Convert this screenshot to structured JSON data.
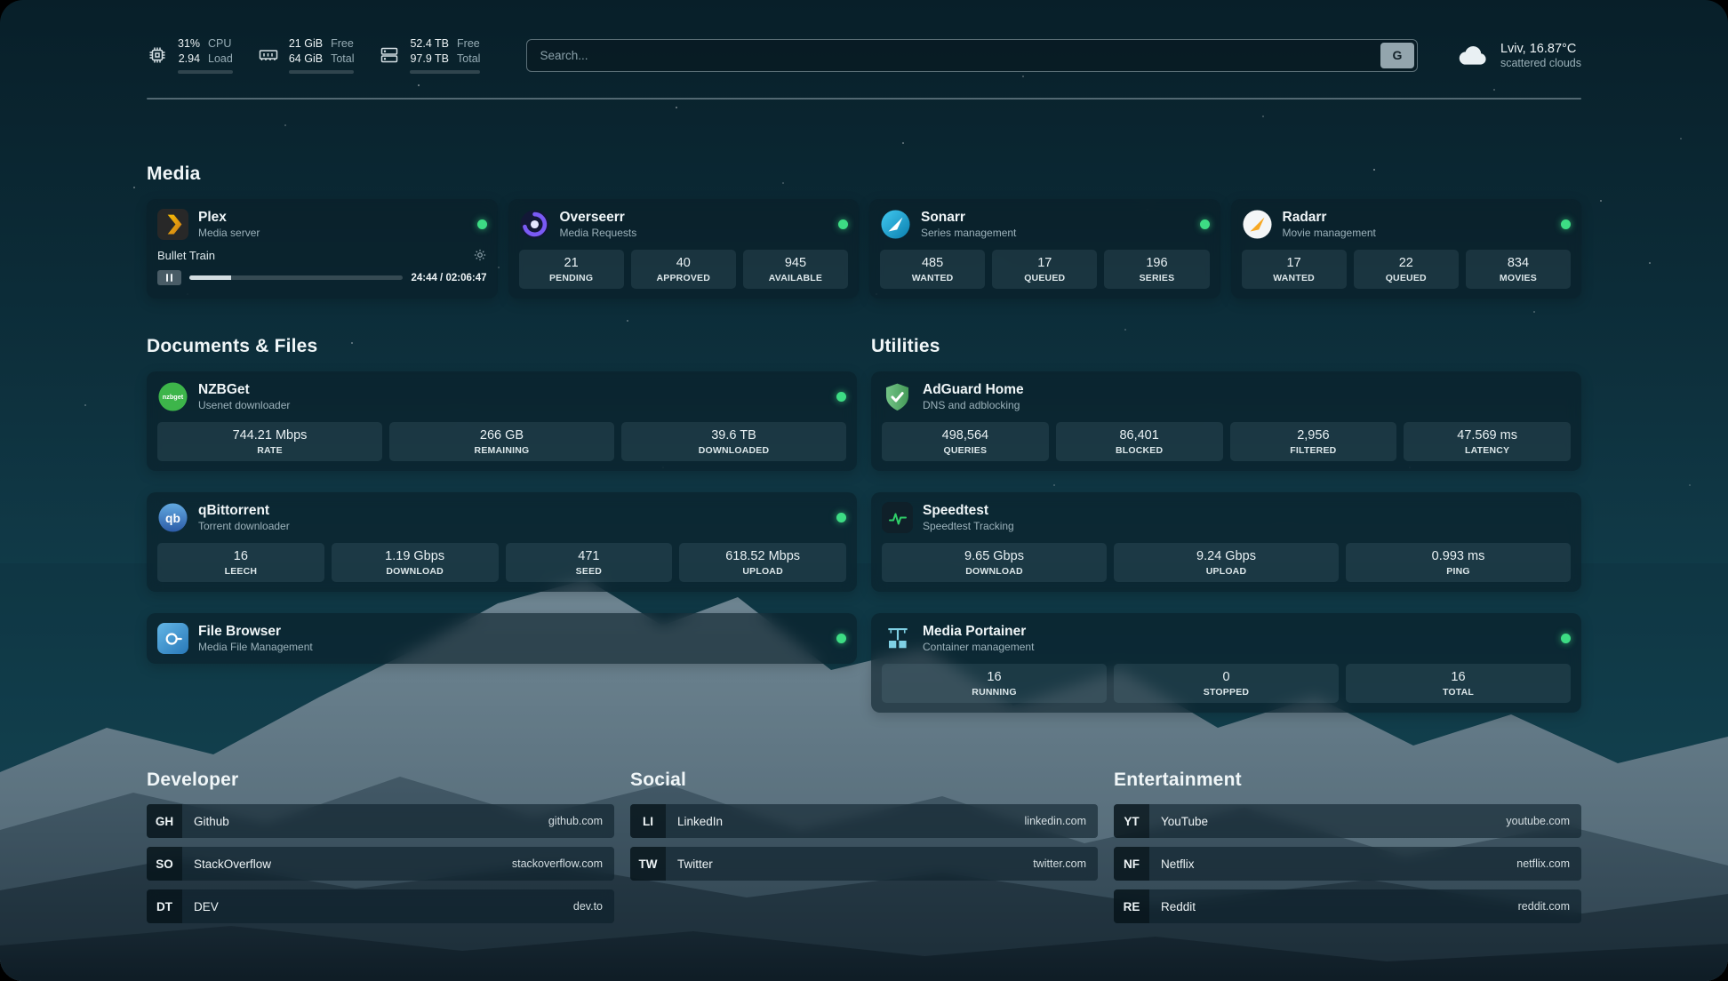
{
  "topbar": {
    "cpu": {
      "value1": "31%",
      "label1": "CPU",
      "value2": "2.94",
      "label2": "Load",
      "bar_percent": 31
    },
    "memory": {
      "value1": "21 GiB",
      "label1": "Free",
      "value2": "64 GiB",
      "label2": "Total",
      "bar_percent": 33
    },
    "storage": {
      "value1": "52.4 TB",
      "label1": "Free",
      "value2": "97.9 TB",
      "label2": "Total",
      "bar_percent": 54
    },
    "search": {
      "placeholder": "Search...",
      "button_label": "G"
    },
    "weather": {
      "location": "Lviv, 16.87°C",
      "condition": "scattered clouds"
    }
  },
  "media": {
    "title": "Media",
    "plex": {
      "name": "Plex",
      "subtitle": "Media server",
      "status": "online",
      "now_playing": "Bullet Train",
      "time_display": "24:44 / 02:06:47",
      "progress_percent": 19.5
    },
    "overseerr": {
      "name": "Overseerr",
      "subtitle": "Media Requests",
      "status": "online",
      "stats": [
        {
          "value": "21",
          "label": "PENDING"
        },
        {
          "value": "40",
          "label": "APPROVED"
        },
        {
          "value": "945",
          "label": "AVAILABLE"
        }
      ]
    },
    "sonarr": {
      "name": "Sonarr",
      "subtitle": "Series management",
      "status": "online",
      "stats": [
        {
          "value": "485",
          "label": "WANTED"
        },
        {
          "value": "17",
          "label": "QUEUED"
        },
        {
          "value": "196",
          "label": "SERIES"
        }
      ]
    },
    "radarr": {
      "name": "Radarr",
      "subtitle": "Movie management",
      "status": "online",
      "stats": [
        {
          "value": "17",
          "label": "WANTED"
        },
        {
          "value": "22",
          "label": "QUEUED"
        },
        {
          "value": "834",
          "label": "MOVIES"
        }
      ]
    }
  },
  "documents": {
    "title": "Documents & Files",
    "nzbget": {
      "name": "NZBGet",
      "subtitle": "Usenet downloader",
      "status": "online",
      "stats": [
        {
          "value": "744.21 Mbps",
          "label": "RATE"
        },
        {
          "value": "266 GB",
          "label": "REMAINING"
        },
        {
          "value": "39.6 TB",
          "label": "DOWNLOADED"
        }
      ]
    },
    "qbittorrent": {
      "name": "qBittorrent",
      "subtitle": "Torrent downloader",
      "status": "online",
      "stats": [
        {
          "value": "16",
          "label": "LEECH"
        },
        {
          "value": "1.19 Gbps",
          "label": "DOWNLOAD"
        },
        {
          "value": "471",
          "label": "SEED"
        },
        {
          "value": "618.52 Mbps",
          "label": "UPLOAD"
        }
      ]
    },
    "filebrowser": {
      "name": "File Browser",
      "subtitle": "Media File Management",
      "status": "online"
    }
  },
  "utilities": {
    "title": "Utilities",
    "adguard": {
      "name": "AdGuard Home",
      "subtitle": "DNS and adblocking",
      "stats": [
        {
          "value": "498,564",
          "label": "QUERIES"
        },
        {
          "value": "86,401",
          "label": "BLOCKED"
        },
        {
          "value": "2,956",
          "label": "FILTERED"
        },
        {
          "value": "47.569 ms",
          "label": "LATENCY"
        }
      ]
    },
    "speedtest": {
      "name": "Speedtest",
      "subtitle": "Speedtest Tracking",
      "stats": [
        {
          "value": "9.65 Gbps",
          "label": "DOWNLOAD"
        },
        {
          "value": "9.24 Gbps",
          "label": "UPLOAD"
        },
        {
          "value": "0.993 ms",
          "label": "PING"
        }
      ]
    },
    "portainer": {
      "name": "Media Portainer",
      "subtitle": "Container management",
      "status": "online",
      "stats": [
        {
          "value": "16",
          "label": "RUNNING"
        },
        {
          "value": "0",
          "label": "STOPPED"
        },
        {
          "value": "16",
          "label": "TOTAL"
        }
      ]
    }
  },
  "bookmarks": {
    "developer": {
      "title": "Developer",
      "items": [
        {
          "abbr": "GH",
          "name": "Github",
          "url": "github.com"
        },
        {
          "abbr": "SO",
          "name": "StackOverflow",
          "url": "stackoverflow.com"
        },
        {
          "abbr": "DT",
          "name": "DEV",
          "url": "dev.to"
        }
      ]
    },
    "social": {
      "title": "Social",
      "items": [
        {
          "abbr": "LI",
          "name": "LinkedIn",
          "url": "linkedin.com"
        },
        {
          "abbr": "TW",
          "name": "Twitter",
          "url": "twitter.com"
        }
      ]
    },
    "entertainment": {
      "title": "Entertainment",
      "items": [
        {
          "abbr": "YT",
          "name": "YouTube",
          "url": "youtube.com"
        },
        {
          "abbr": "NF",
          "name": "Netflix",
          "url": "netflix.com"
        },
        {
          "abbr": "RE",
          "name": "Reddit",
          "url": "reddit.com"
        }
      ]
    }
  },
  "colors": {
    "status_online": "#3ddc84",
    "plex_gold": "#e8a33d",
    "overseerr_purple": "#7a5af5",
    "sonarr_blue": "#35c5f4",
    "radarr_amber": "#f7a823",
    "nzbget_green": "#3db54a",
    "qbittorrent_blue": "#4a8fd2",
    "filebrowser_blue": "#4aa3dd",
    "adguard_green": "#5fb771",
    "speedtest_pulse": "#2fd069",
    "portainer_teal": "#7fd0e4"
  },
  "icons": {
    "cpu": "chip",
    "memory": "ram-stick",
    "storage": "drive-stack",
    "weather": "cloud",
    "search_button": "G",
    "plex_settings": "gear",
    "plex_playback": "pause",
    "status": "dot"
  }
}
